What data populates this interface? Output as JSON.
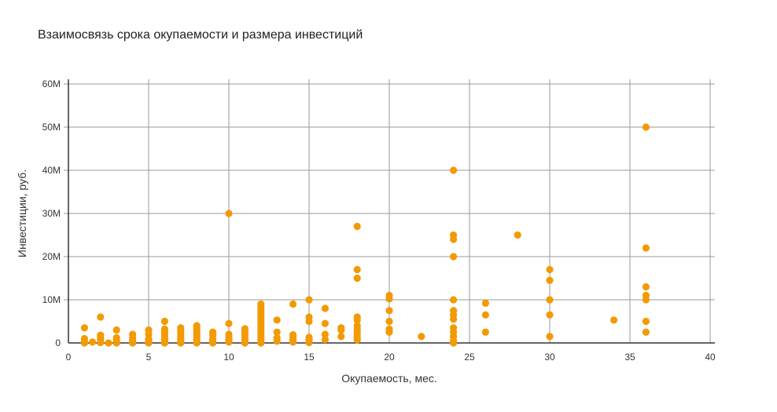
{
  "chart_data": {
    "type": "scatter",
    "title": "Взаимосвязь срока окупаемости и размера инвестиций",
    "xlabel": "Окупаемость, мес.",
    "ylabel": "Инвестиции, руб.",
    "xlim": [
      0,
      40
    ],
    "ylim": [
      0,
      60000000
    ],
    "x_ticks": [
      0,
      5,
      10,
      15,
      20,
      25,
      30,
      35,
      40
    ],
    "x_tick_labels": [
      "0",
      "5",
      "10",
      "15",
      "20",
      "25",
      "30",
      "35",
      "40"
    ],
    "y_ticks": [
      0,
      10000000,
      20000000,
      30000000,
      40000000,
      50000000,
      60000000
    ],
    "y_tick_labels": [
      "0",
      "10M",
      "20M",
      "30M",
      "40M",
      "50M",
      "60M"
    ],
    "grid": true,
    "legend": "none",
    "marker_color": "#F29A00",
    "series": [
      {
        "points": [
          [
            1,
            3500000
          ],
          [
            1,
            1000000
          ],
          [
            1,
            300000
          ],
          [
            1,
            0
          ],
          [
            1.5,
            200000
          ],
          [
            2,
            6000000
          ],
          [
            2,
            1800000
          ],
          [
            2,
            1200000
          ],
          [
            2,
            600000
          ],
          [
            2,
            100000
          ],
          [
            2.5,
            0
          ],
          [
            3,
            3000000
          ],
          [
            3,
            1200000
          ],
          [
            3,
            700000
          ],
          [
            3,
            300000
          ],
          [
            3,
            0
          ],
          [
            4,
            2000000
          ],
          [
            4,
            1200000
          ],
          [
            4,
            600000
          ],
          [
            4,
            200000
          ],
          [
            4,
            0
          ],
          [
            5,
            3000000
          ],
          [
            5,
            2000000
          ],
          [
            5,
            900000
          ],
          [
            5,
            400000
          ],
          [
            5,
            0
          ],
          [
            6,
            5000000
          ],
          [
            6,
            3200000
          ],
          [
            6,
            2800000
          ],
          [
            6,
            2200000
          ],
          [
            6,
            1600000
          ],
          [
            6,
            1000000
          ],
          [
            6,
            500000
          ],
          [
            6,
            0
          ],
          [
            7,
            3500000
          ],
          [
            7,
            2800000
          ],
          [
            7,
            2200000
          ],
          [
            7,
            1600000
          ],
          [
            7,
            1000000
          ],
          [
            7,
            500000
          ],
          [
            7,
            0
          ],
          [
            8,
            4000000
          ],
          [
            8,
            3400000
          ],
          [
            8,
            2800000
          ],
          [
            8,
            2200000
          ],
          [
            8,
            1600000
          ],
          [
            8,
            1000000
          ],
          [
            8,
            500000
          ],
          [
            8,
            0
          ],
          [
            9,
            2500000
          ],
          [
            9,
            1800000
          ],
          [
            9,
            1000000
          ],
          [
            9,
            500000
          ],
          [
            9,
            0
          ],
          [
            10,
            30000000
          ],
          [
            10,
            4500000
          ],
          [
            10,
            2000000
          ],
          [
            10,
            1300000
          ],
          [
            10,
            700000
          ],
          [
            10,
            200000
          ],
          [
            11,
            3300000
          ],
          [
            11,
            2600000
          ],
          [
            11,
            1800000
          ],
          [
            11,
            1100000
          ],
          [
            11,
            400000
          ],
          [
            11,
            0
          ],
          [
            12,
            9000000
          ],
          [
            12,
            8400000
          ],
          [
            12,
            7700000
          ],
          [
            12,
            7000000
          ],
          [
            12,
            6300000
          ],
          [
            12,
            5600000
          ],
          [
            12,
            4900000
          ],
          [
            12,
            4200000
          ],
          [
            12,
            3500000
          ],
          [
            12,
            2800000
          ],
          [
            12,
            2100000
          ],
          [
            12,
            1400000
          ],
          [
            12,
            700000
          ],
          [
            12,
            0
          ],
          [
            13,
            5300000
          ],
          [
            13,
            2500000
          ],
          [
            13,
            1200000
          ],
          [
            13,
            400000
          ],
          [
            14,
            9000000
          ],
          [
            14,
            1900000
          ],
          [
            14,
            1300000
          ],
          [
            14,
            700000
          ],
          [
            14,
            200000
          ],
          [
            15,
            10000000
          ],
          [
            15,
            6000000
          ],
          [
            15,
            5000000
          ],
          [
            15,
            1300000
          ],
          [
            15,
            700000
          ],
          [
            15,
            100000
          ],
          [
            16,
            8000000
          ],
          [
            16,
            4500000
          ],
          [
            16,
            2000000
          ],
          [
            16,
            800000
          ],
          [
            17,
            3500000
          ],
          [
            17,
            3000000
          ],
          [
            17,
            1500000
          ],
          [
            18,
            27000000
          ],
          [
            18,
            17000000
          ],
          [
            18,
            15000000
          ],
          [
            18,
            6000000
          ],
          [
            18,
            5300000
          ],
          [
            18,
            4000000
          ],
          [
            18,
            3300000
          ],
          [
            18,
            2700000
          ],
          [
            18,
            2000000
          ],
          [
            18,
            1300000
          ],
          [
            18,
            700000
          ],
          [
            20,
            11000000
          ],
          [
            20,
            10200000
          ],
          [
            20,
            7500000
          ],
          [
            20,
            5000000
          ],
          [
            20,
            3200000
          ],
          [
            20,
            2500000
          ],
          [
            22,
            1500000
          ],
          [
            24,
            40000000
          ],
          [
            24,
            25000000
          ],
          [
            24,
            24000000
          ],
          [
            24,
            20000000
          ],
          [
            24,
            10000000
          ],
          [
            24,
            7500000
          ],
          [
            24,
            6500000
          ],
          [
            24,
            5500000
          ],
          [
            24,
            3500000
          ],
          [
            24,
            2500000
          ],
          [
            24,
            1500000
          ],
          [
            24,
            500000
          ],
          [
            24,
            0
          ],
          [
            26,
            9200000
          ],
          [
            26,
            6500000
          ],
          [
            26,
            2500000
          ],
          [
            28,
            25000000
          ],
          [
            30,
            17000000
          ],
          [
            30,
            14500000
          ],
          [
            30,
            10000000
          ],
          [
            30,
            6500000
          ],
          [
            30,
            1500000
          ],
          [
            34,
            5300000
          ],
          [
            36,
            50000000
          ],
          [
            36,
            22000000
          ],
          [
            36,
            13000000
          ],
          [
            36,
            11000000
          ],
          [
            36,
            10000000
          ],
          [
            36,
            5000000
          ],
          [
            36,
            2500000
          ]
        ]
      }
    ]
  }
}
